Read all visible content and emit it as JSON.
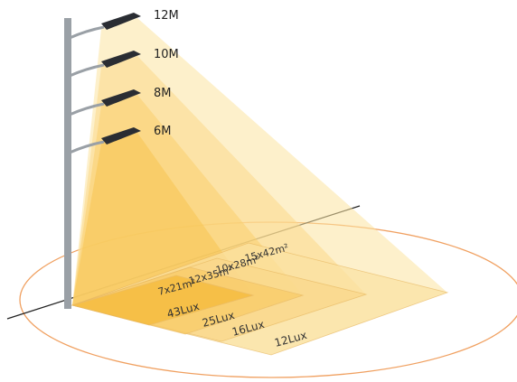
{
  "pole_heights": [
    "12M",
    "10M",
    "8M",
    "6M"
  ],
  "area_labels": [
    "15x42m²",
    "10x28m²",
    "12x35m²",
    "7x21m²"
  ],
  "lux_labels": [
    "43Lux",
    "25Lux",
    "16Lux",
    "12Lux"
  ]
}
